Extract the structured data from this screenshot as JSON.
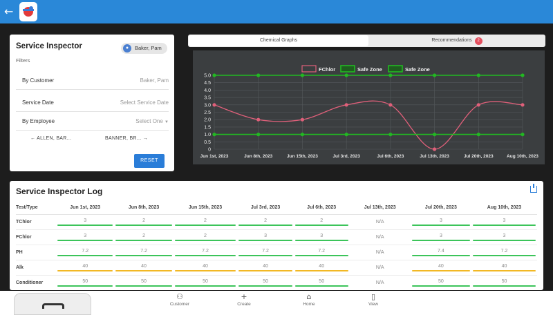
{
  "filter_panel": {
    "title": "Service Inspector",
    "user_chip": "Baker, Pam",
    "filters_label": "Filters",
    "rows": [
      {
        "label": "By Customer",
        "value": "Baker, Pam"
      },
      {
        "label": "Service Date",
        "value": "Select Service Date"
      },
      {
        "label": "By Employee",
        "value": "Select One"
      }
    ],
    "prev_employee": "ALLEN, BAR...",
    "next_employee": "BANNER, BR...",
    "reset_label": "RESET"
  },
  "tabs": [
    {
      "label": "Chemical Graphs",
      "active": true
    },
    {
      "label": "Recommendations",
      "badge": "2",
      "active": false
    }
  ],
  "chart_data": {
    "type": "line",
    "x": [
      "Jun 1st, 2023",
      "Jun 8th, 2023",
      "Jun 15th, 2023",
      "Jul 3rd, 2023",
      "Jul 6th, 2023",
      "Jul 13th, 2023",
      "Jul 20th, 2023",
      "Aug 10th, 2023"
    ],
    "y_ticks": [
      "5.0",
      "4.5",
      "4.0",
      "3.5",
      "3.0",
      "2.5",
      "2.0",
      "1.5",
      "1.0",
      "0.5",
      "0"
    ],
    "ylim": [
      0,
      5
    ],
    "series": [
      {
        "name": "FChlor",
        "values": [
          3,
          2,
          2,
          3,
          3,
          0,
          3,
          3
        ],
        "color": "#e0607a"
      },
      {
        "name": "Safe Zone",
        "values": [
          5,
          5,
          5,
          5,
          5,
          5,
          5,
          5
        ],
        "color": "#22b822"
      },
      {
        "name": "Safe Zone",
        "values": [
          1,
          1,
          1,
          1,
          1,
          1,
          1,
          1
        ],
        "color": "#22b822"
      }
    ],
    "legend": "top-center",
    "grid": true
  },
  "log": {
    "title": "Service Inspector Log",
    "header_first": "Test/Type",
    "dates": [
      "Jun 1st, 2023",
      "Jun 8th, 2023",
      "Jun 15th, 2023",
      "Jul 3rd, 2023",
      "Jul 6th, 2023",
      "Jul 13th, 2023",
      "Jul 20th, 2023",
      "Aug 10th, 2023"
    ],
    "rows": [
      {
        "label": "TChlor",
        "values": [
          "3",
          "2",
          "2",
          "2",
          "2",
          "N/A",
          "3",
          "3"
        ],
        "bar_color": "#3cc45a"
      },
      {
        "label": "FChlor",
        "values": [
          "3",
          "2",
          "2",
          "3",
          "3",
          "N/A",
          "3",
          "3"
        ],
        "bar_color": "#3cc45a"
      },
      {
        "label": "PH",
        "values": [
          "7.2",
          "7.2",
          "7.2",
          "7.2",
          "7.2",
          "N/A",
          "7.4",
          "7.2"
        ],
        "bar_color": "#3cc45a"
      },
      {
        "label": "Alk",
        "values": [
          "40",
          "40",
          "40",
          "40",
          "40",
          "N/A",
          "40",
          "40"
        ],
        "bar_color": "#f2b824"
      },
      {
        "label": "Conditioner",
        "values": [
          "50",
          "50",
          "50",
          "50",
          "50",
          "N/A",
          "50",
          "50"
        ],
        "bar_color": "#3cc45a"
      }
    ]
  },
  "bottom_nav": [
    {
      "label": "Customer",
      "icon": "people-icon"
    },
    {
      "label": "Create",
      "icon": "plus-icon"
    },
    {
      "label": "Home",
      "icon": "home-icon"
    },
    {
      "label": "View",
      "icon": "book-icon"
    }
  ]
}
